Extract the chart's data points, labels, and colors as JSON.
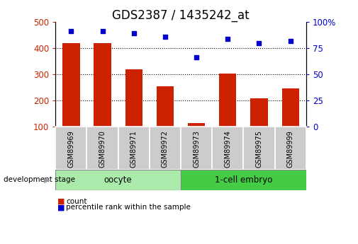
{
  "title": "GDS2387 / 1435242_at",
  "categories": [
    "GSM89969",
    "GSM89970",
    "GSM89971",
    "GSM89972",
    "GSM89973",
    "GSM89974",
    "GSM89975",
    "GSM89999"
  ],
  "bar_values": [
    420,
    420,
    320,
    255,
    115,
    303,
    210,
    248
  ],
  "scatter_values": [
    91,
    91,
    89,
    86,
    66,
    84,
    80,
    82
  ],
  "bar_color": "#cc2200",
  "scatter_color": "#0000cc",
  "ylim_left": [
    100,
    500
  ],
  "ylim_right": [
    0,
    100
  ],
  "yticks_left": [
    100,
    200,
    300,
    400,
    500
  ],
  "yticks_right": [
    0,
    25,
    50,
    75,
    100
  ],
  "ytick_labels_right": [
    "0",
    "25",
    "50",
    "75",
    "100%"
  ],
  "grid_lines": [
    200,
    300,
    400
  ],
  "groups": [
    {
      "label": "oocyte",
      "indices": [
        0,
        1,
        2,
        3
      ],
      "color": "#aaeaaa"
    },
    {
      "label": "1-cell embryo",
      "indices": [
        4,
        5,
        6,
        7
      ],
      "color": "#44cc44"
    }
  ],
  "dev_stage_label": "development stage",
  "legend_items": [
    {
      "label": "count",
      "color": "#cc2200"
    },
    {
      "label": "percentile rank within the sample",
      "color": "#0000cc"
    }
  ],
  "background_color": "#ffffff",
  "gray_cell_color": "#cccccc",
  "title_fontsize": 12
}
